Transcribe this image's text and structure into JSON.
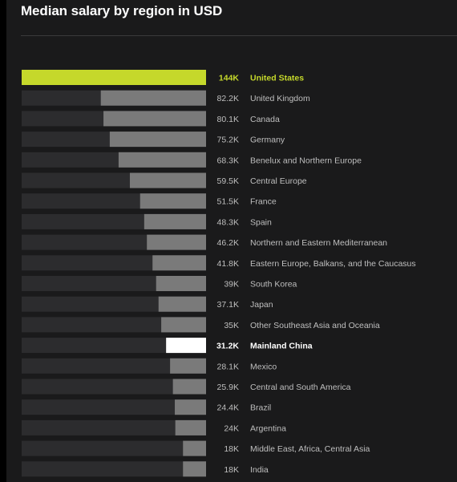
{
  "chart_data": {
    "type": "bar",
    "orientation": "horizontal",
    "title": "Median salary by region in USD",
    "value_suffix": "K",
    "xlim": [
      0,
      144
    ],
    "grid": false,
    "legend": "none",
    "categories": [
      "United States",
      "United Kingdom",
      "Canada",
      "Germany",
      "Benelux and Northern Europe",
      "Central Europe",
      "France",
      "Spain",
      "Northern and Eastern Mediterranean",
      "Eastern Europe, Balkans, and the Caucasus",
      "South Korea",
      "Japan",
      "Other Southeast Asia and Oceania",
      "Mainland China",
      "Mexico",
      "Central and South America",
      "Brazil",
      "Argentina",
      "Middle East, Africa, Central Asia",
      "India"
    ],
    "values": [
      144,
      82.2,
      80.1,
      75.2,
      68.3,
      59.5,
      51.5,
      48.3,
      46.2,
      41.8,
      39,
      37.1,
      35,
      31.2,
      28.1,
      25.9,
      24.4,
      24,
      18,
      18
    ],
    "value_labels": [
      "144K",
      "82.2K",
      "80.1K",
      "75.2K",
      "68.3K",
      "59.5K",
      "51.5K",
      "48.3K",
      "46.2K",
      "41.8K",
      "39K",
      "37.1K",
      "35K",
      "31.2K",
      "28.1K",
      "25.9K",
      "24.4K",
      "24K",
      "18K",
      "18K"
    ],
    "highlights": {
      "United States": "#c5d82b",
      "Mainland China": "#ffffff"
    },
    "colors": {
      "bar": "#7a7a7a",
      "track": "#2c2c2e",
      "label": "#bfbfbf"
    }
  }
}
